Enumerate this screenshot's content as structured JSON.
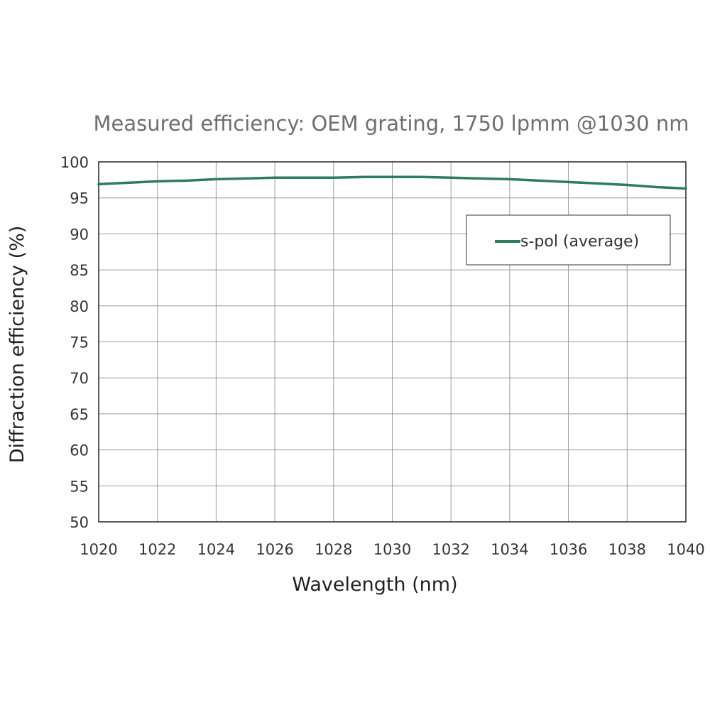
{
  "chart_data": {
    "type": "line",
    "title": "Measured efficiency: OEM grating, 1750 lpmm @1030 nm",
    "xlabel": "Wavelength (nm)",
    "ylabel": "Diffraction efficiency (%)",
    "xlim": [
      1020,
      1040
    ],
    "ylim": [
      50,
      100
    ],
    "xticks": [
      1020,
      1022,
      1024,
      1026,
      1028,
      1030,
      1032,
      1034,
      1036,
      1038,
      1040
    ],
    "yticks": [
      50,
      55,
      60,
      65,
      70,
      75,
      80,
      85,
      90,
      95,
      100
    ],
    "grid": true,
    "legend_position": "top-right",
    "series": [
      {
        "name": "s-pol (average)",
        "color": "#2e7d5a",
        "x": [
          1020,
          1021,
          1022,
          1023,
          1024,
          1025,
          1026,
          1027,
          1028,
          1029,
          1030,
          1031,
          1032,
          1033,
          1034,
          1035,
          1036,
          1037,
          1038,
          1039,
          1040
        ],
        "y": [
          96.9,
          97.1,
          97.3,
          97.4,
          97.6,
          97.7,
          97.8,
          97.8,
          97.8,
          97.9,
          97.9,
          97.9,
          97.8,
          97.7,
          97.6,
          97.4,
          97.2,
          97.0,
          96.8,
          96.5,
          96.3
        ]
      }
    ]
  }
}
